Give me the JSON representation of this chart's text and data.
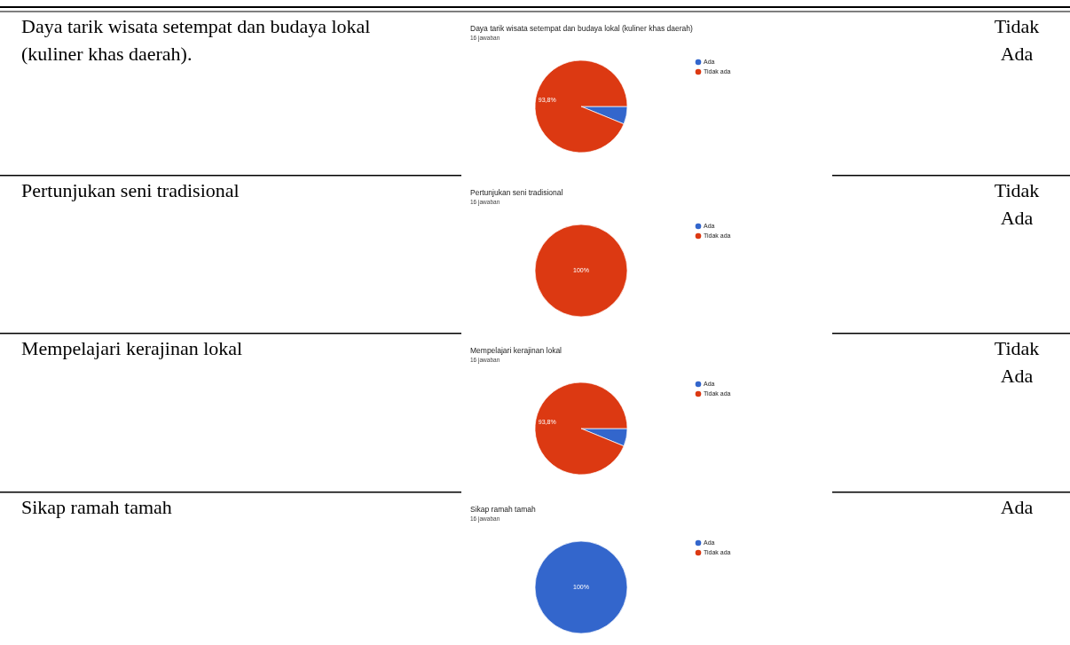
{
  "chart_data": [
    {
      "type": "pie",
      "title": "Daya tarik wisata setempat dan budaya lokal (kuliner  khas daerah)",
      "subtitle": "16 jawaban",
      "categories": [
        "Ada",
        "Tidak ada"
      ],
      "values": [
        6.2,
        93.8
      ],
      "colors": [
        "#3366cc",
        "#dc3912"
      ],
      "value_labels": [
        null,
        "93,8%"
      ],
      "legend": "right",
      "annotations": [
        "Daya tarik wisata setempat dan budaya lokal (kuliner  khas daerah).",
        "Tidak Ada"
      ]
    },
    {
      "type": "pie",
      "title": "Pertunjukan seni tradisional",
      "subtitle": "16 jawaban",
      "categories": [
        "Ada",
        "Tidak ada"
      ],
      "values": [
        0,
        100
      ],
      "colors": [
        "#3366cc",
        "#dc3912"
      ],
      "value_labels": [
        null,
        "100%"
      ],
      "legend": "right",
      "annotations": [
        "Pertunjukan seni tradisional",
        "Tidak Ada"
      ]
    },
    {
      "type": "pie",
      "title": "Mempelajari kerajinan lokal",
      "subtitle": "16 jawaban",
      "categories": [
        "Ada",
        "Tidak ada"
      ],
      "values": [
        6.2,
        93.8
      ],
      "colors": [
        "#3366cc",
        "#dc3912"
      ],
      "value_labels": [
        null,
        "93,8%"
      ],
      "legend": "right",
      "annotations": [
        "Mempelajari kerajinan lokal",
        "Tidak Ada"
      ]
    },
    {
      "type": "pie",
      "title": "Sikap ramah tamah",
      "subtitle": "16 jawaban",
      "categories": [
        "Ada",
        "Tidak ada"
      ],
      "values": [
        100,
        0
      ],
      "colors": [
        "#3366cc",
        "#dc3912"
      ],
      "value_labels": [
        "100%",
        null
      ],
      "legend": "right",
      "annotations": [
        "Sikap ramah tamah",
        "Ada"
      ]
    }
  ]
}
